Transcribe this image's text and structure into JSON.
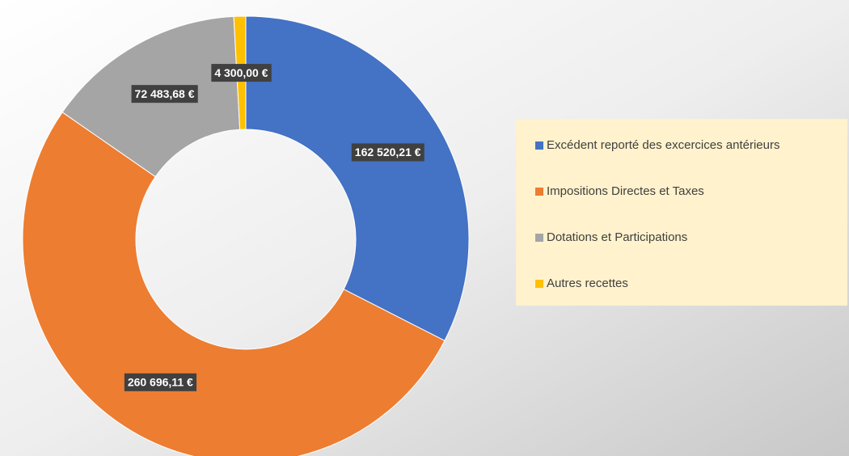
{
  "chart_data": {
    "type": "donut",
    "categories": [
      "Excédent reporté des excercices antérieurs",
      "Impositions Directes et Taxes",
      "Dotations et Participations",
      "Autres recettes"
    ],
    "values": [
      162520.21,
      260696.11,
      72483.68,
      4300.0
    ],
    "value_labels": [
      "162 520,21 €",
      "260 696,11 €",
      "72 483,68 €",
      "4 300,00 €"
    ],
    "colors": [
      "#4472c4",
      "#ed7d31",
      "#a5a5a5",
      "#ffc000"
    ],
    "legend": "right"
  }
}
